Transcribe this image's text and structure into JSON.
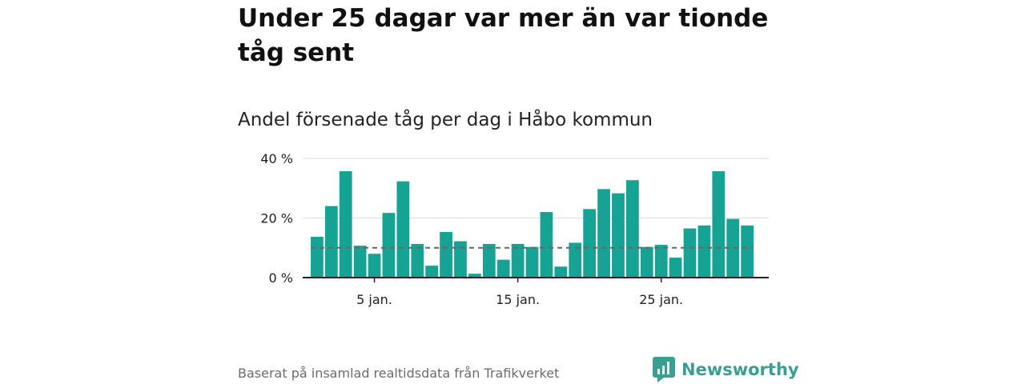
{
  "title": "Under 25 dagar var mer än var tionde tåg sent",
  "subtitle": "Andel försenade tåg per dag i Håbo kommun",
  "footer": "Baserat på insamlad realtidsdata från Trafikverket",
  "brand": "Newsworthy",
  "colors": {
    "bar": "#16a394",
    "reference_line": "#666666",
    "grid": "#dddddd",
    "brand": "#3a9e92"
  },
  "chart_data": {
    "type": "bar",
    "x": [
      1,
      2,
      3,
      4,
      5,
      6,
      7,
      8,
      9,
      10,
      11,
      12,
      13,
      14,
      15,
      16,
      17,
      18,
      19,
      20,
      21,
      22,
      23,
      24,
      25,
      26,
      27,
      28,
      29,
      30,
      31
    ],
    "values": [
      13.7,
      24.0,
      35.7,
      10.7,
      8.0,
      21.7,
      32.3,
      11.3,
      4.0,
      15.3,
      12.2,
      1.3,
      11.3,
      6.0,
      11.3,
      10.3,
      22.0,
      3.7,
      11.7,
      23.0,
      29.7,
      28.3,
      32.7,
      10.3,
      11.0,
      6.7,
      16.5,
      17.5,
      35.7,
      19.7,
      17.5
    ],
    "reference_line": 10,
    "ylim": [
      0,
      40
    ],
    "yticks": [
      0,
      20,
      40
    ],
    "ytick_labels": [
      "0 %",
      "20 %",
      "40 %"
    ],
    "xticks": [
      5,
      15,
      25
    ],
    "xtick_labels": [
      "5 jan.",
      "15 jan.",
      "25 jan."
    ],
    "grid": true
  }
}
